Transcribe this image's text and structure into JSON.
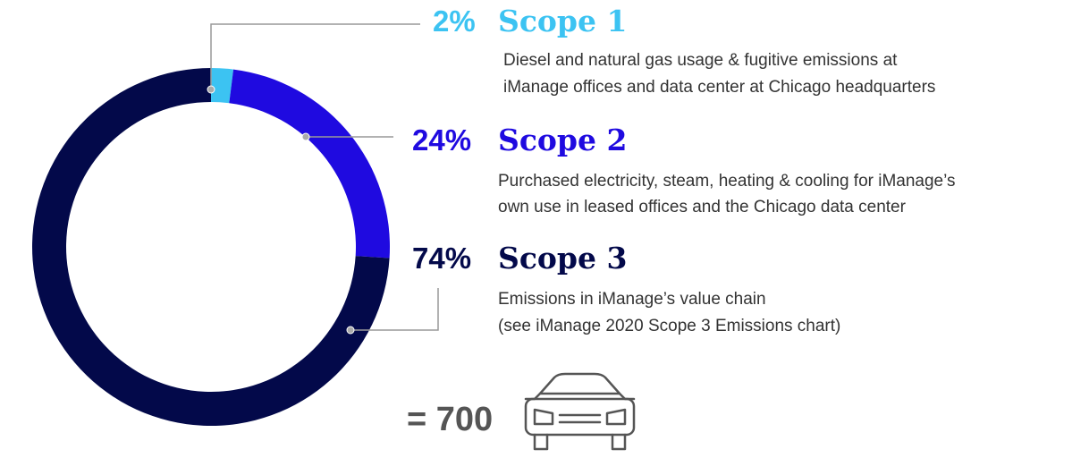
{
  "chart_data": {
    "type": "donut",
    "categories": [
      "Scope 1",
      "Scope 2",
      "Scope 3"
    ],
    "values": [
      2,
      24,
      74
    ],
    "value_labels": [
      "2%",
      "24%",
      "74%"
    ],
    "colors": [
      "#3cc3f2",
      "#1f0ae0",
      "#03094a"
    ],
    "descriptions": [
      [
        "Diesel and natural gas usage & fugitive emissions at",
        "iManage offices and data center at Chicago headquarters"
      ],
      [
        "Purchased electricity, steam, heating & cooling for iManage’s",
        "own use in leased offices and the Chicago data center"
      ],
      [
        "Emissions in iManage’s value chain",
        "(see iManage 2020 Scope 3 Emissions chart)"
      ]
    ],
    "equivalent": "= 700"
  }
}
